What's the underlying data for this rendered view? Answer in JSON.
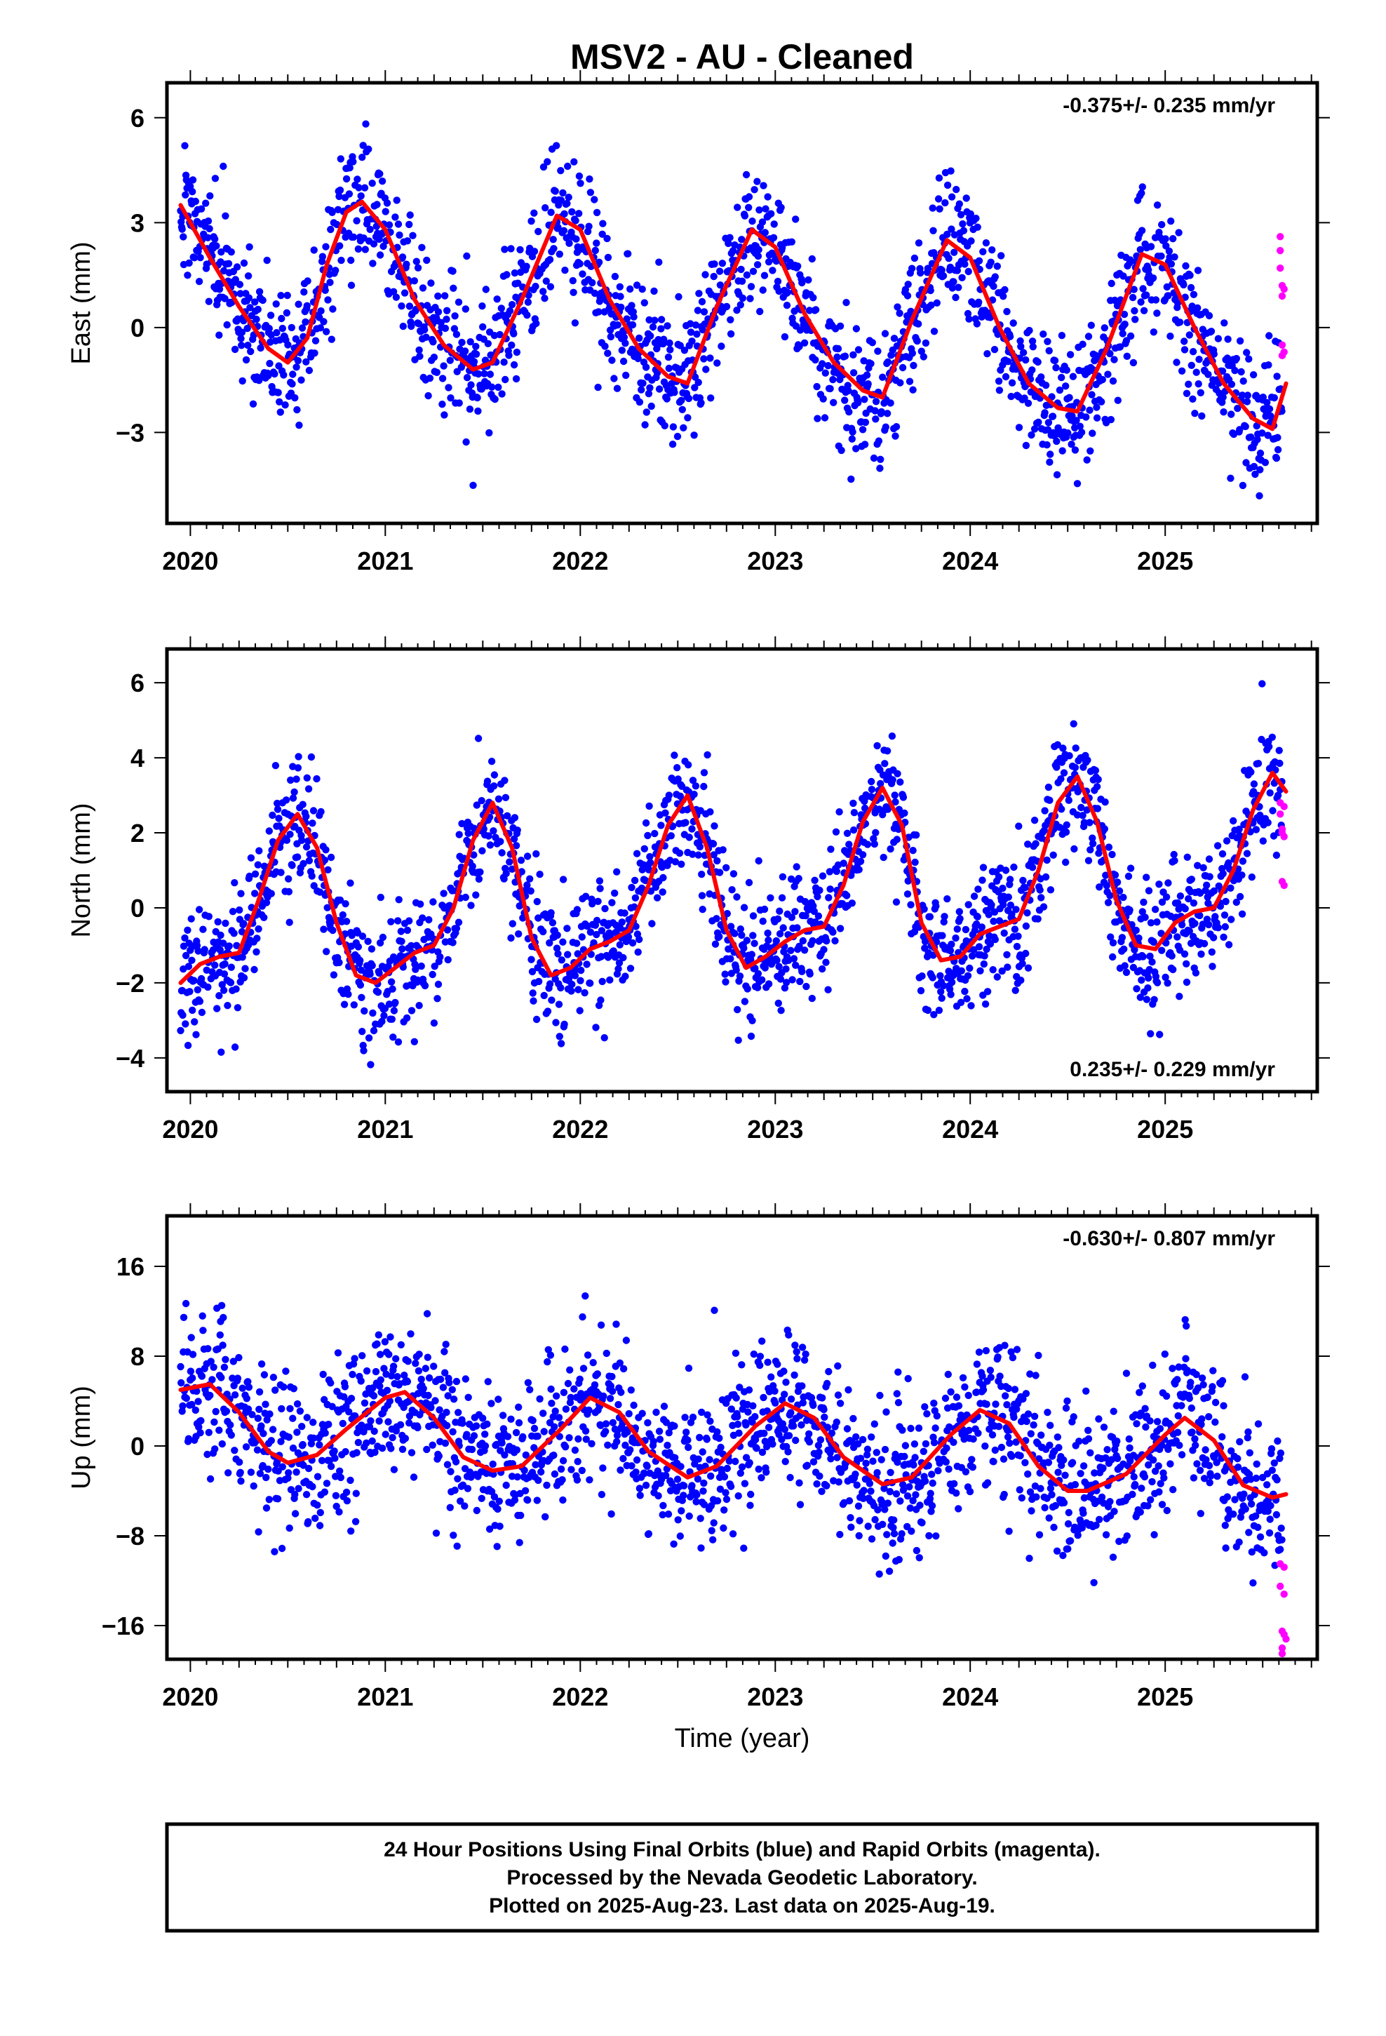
{
  "header": {
    "title": "MSV2  - AU - Cleaned"
  },
  "xaxis": {
    "label": "Time (year)",
    "range": [
      2019.88,
      2025.78
    ],
    "ticks": [
      2020,
      2021,
      2022,
      2023,
      2024,
      2025
    ]
  },
  "footer": {
    "line1": "24 Hour Positions Using Final Orbits (blue) and Rapid Orbits (magenta).",
    "line2": "Processed by the Nevada Geodetic Laboratory.",
    "line3": "Plotted on 2025-Aug-23. Last data on 2025-Aug-19."
  },
  "colors": {
    "final_points": "#0000ff",
    "rapid_points": "#ff00ff",
    "model_line": "#ff0000",
    "frame": "#000000"
  },
  "chart_data": [
    {
      "type": "scatter",
      "ylabel": "East (mm)",
      "ylim": [
        -5.6,
        7.0
      ],
      "yticks": [
        6,
        3,
        0,
        -3
      ],
      "ytick_labels": [
        "6",
        "3",
        "0",
        "−3"
      ],
      "rate_text": "-0.375+/- 0.235 mm/yr",
      "rate_position": "top-right",
      "grid": false,
      "model": {
        "x": [
          2019.95,
          2020.1,
          2020.25,
          2020.4,
          2020.5,
          2020.6,
          2020.7,
          2020.8,
          2020.88,
          2021.0,
          2021.15,
          2021.3,
          2021.45,
          2021.55,
          2021.7,
          2021.88,
          2022.0,
          2022.15,
          2022.3,
          2022.45,
          2022.55,
          2022.7,
          2022.88,
          2023.0,
          2023.15,
          2023.3,
          2023.45,
          2023.55,
          2023.7,
          2023.88,
          2024.0,
          2024.15,
          2024.3,
          2024.45,
          2024.55,
          2024.7,
          2024.88,
          2025.0,
          2025.15,
          2025.3,
          2025.45,
          2025.55,
          2025.62
        ],
        "y": [
          3.5,
          2.0,
          0.6,
          -0.6,
          -1.0,
          -0.3,
          1.8,
          3.3,
          3.6,
          2.8,
          0.8,
          -0.5,
          -1.2,
          -1.0,
          0.8,
          3.2,
          2.8,
          0.8,
          -0.6,
          -1.4,
          -1.6,
          0.6,
          2.8,
          2.3,
          0.4,
          -1.0,
          -1.8,
          -2.0,
          0.2,
          2.5,
          2.0,
          0.0,
          -1.6,
          -2.3,
          -2.4,
          -0.6,
          2.1,
          1.8,
          0.0,
          -1.6,
          -2.6,
          -2.9,
          -1.6
        ]
      },
      "rapid_points": {
        "x": [
          2025.59,
          2025.59,
          2025.59,
          2025.6,
          2025.6,
          2025.6,
          2025.6,
          2025.61,
          2025.61
        ],
        "y": [
          2.6,
          2.2,
          1.7,
          1.2,
          0.9,
          -0.5,
          -0.8,
          1.1,
          -0.7
        ]
      }
    },
    {
      "type": "scatter",
      "ylabel": "North (mm)",
      "ylim": [
        -4.9,
        6.9
      ],
      "yticks": [
        6,
        4,
        2,
        0,
        -2,
        -4
      ],
      "ytick_labels": [
        "6",
        "4",
        "2",
        "0",
        "−2",
        "−4"
      ],
      "rate_text": "0.235+/- 0.229 mm/yr",
      "rate_position": "bottom-right",
      "grid": false,
      "model": {
        "x": [
          2019.95,
          2020.05,
          2020.15,
          2020.25,
          2020.35,
          2020.45,
          2020.55,
          2020.65,
          2020.75,
          2020.85,
          2020.95,
          2021.05,
          2021.15,
          2021.25,
          2021.35,
          2021.45,
          2021.55,
          2021.65,
          2021.75,
          2021.85,
          2021.95,
          2022.05,
          2022.15,
          2022.25,
          2022.35,
          2022.45,
          2022.55,
          2022.65,
          2022.75,
          2022.85,
          2022.95,
          2023.05,
          2023.15,
          2023.25,
          2023.35,
          2023.45,
          2023.55,
          2023.65,
          2023.75,
          2023.85,
          2023.95,
          2024.05,
          2024.15,
          2024.25,
          2024.35,
          2024.45,
          2024.55,
          2024.65,
          2024.75,
          2024.85,
          2024.95,
          2025.05,
          2025.15,
          2025.25,
          2025.35,
          2025.45,
          2025.55,
          2025.62
        ],
        "y": [
          -2.0,
          -1.5,
          -1.3,
          -1.2,
          0.2,
          1.8,
          2.5,
          1.6,
          -0.4,
          -1.8,
          -2.0,
          -1.6,
          -1.2,
          -1.0,
          0.0,
          1.8,
          2.8,
          1.6,
          -0.8,
          -1.8,
          -1.6,
          -1.1,
          -0.9,
          -0.6,
          0.6,
          2.2,
          3.0,
          1.6,
          -0.6,
          -1.6,
          -1.3,
          -0.9,
          -0.6,
          -0.5,
          0.6,
          2.3,
          3.2,
          2.2,
          -0.4,
          -1.4,
          -1.3,
          -0.7,
          -0.5,
          -0.3,
          1.0,
          2.8,
          3.5,
          2.3,
          0.2,
          -1.0,
          -1.1,
          -0.4,
          -0.1,
          0.0,
          1.0,
          2.6,
          3.6,
          3.1
        ]
      },
      "rapid_points": {
        "x": [
          2025.59,
          2025.59,
          2025.6,
          2025.6,
          2025.6,
          2025.61,
          2025.61,
          2025.61
        ],
        "y": [
          2.8,
          2.5,
          2.1,
          2.0,
          0.7,
          0.6,
          2.7,
          1.9
        ]
      }
    },
    {
      "type": "scatter",
      "ylabel": "Up (mm)",
      "ylim": [
        -19.0,
        20.5
      ],
      "yticks": [
        16,
        8,
        0,
        -8,
        -16
      ],
      "ytick_labels": [
        "16",
        "8",
        "0",
        "−8",
        "−16"
      ],
      "rate_text": "-0.630+/- 0.807 mm/yr",
      "rate_position": "top-right",
      "grid": false,
      "model": {
        "x": [
          2019.95,
          2020.1,
          2020.25,
          2020.4,
          2020.5,
          2020.65,
          2020.8,
          2021.0,
          2021.1,
          2021.25,
          2021.4,
          2021.55,
          2021.7,
          2021.9,
          2022.05,
          2022.2,
          2022.35,
          2022.55,
          2022.7,
          2022.9,
          2023.05,
          2023.2,
          2023.35,
          2023.55,
          2023.7,
          2023.9,
          2024.05,
          2024.2,
          2024.35,
          2024.5,
          2024.6,
          2024.8,
          2025.0,
          2025.1,
          2025.25,
          2025.4,
          2025.55,
          2025.62
        ],
        "y": [
          5.0,
          5.5,
          3.0,
          -0.5,
          -1.5,
          -0.8,
          1.5,
          4.3,
          4.8,
          2.5,
          -1.0,
          -2.2,
          -1.8,
          1.5,
          4.3,
          3.0,
          -0.5,
          -2.8,
          -1.8,
          1.8,
          3.8,
          2.5,
          -1.0,
          -3.4,
          -2.8,
          1.0,
          3.2,
          2.0,
          -1.8,
          -4.0,
          -4.0,
          -2.5,
          1.0,
          2.5,
          0.5,
          -3.5,
          -4.6,
          -4.3
        ]
      },
      "rapid_points": {
        "x": [
          2025.59,
          2025.59,
          2025.6,
          2025.6,
          2025.6,
          2025.61,
          2025.61,
          2025.61,
          2025.62
        ],
        "y": [
          -10.5,
          -12.5,
          -16.5,
          -18.0,
          -18.5,
          -10.8,
          -13.2,
          -16.8,
          -17.2
        ]
      }
    }
  ]
}
